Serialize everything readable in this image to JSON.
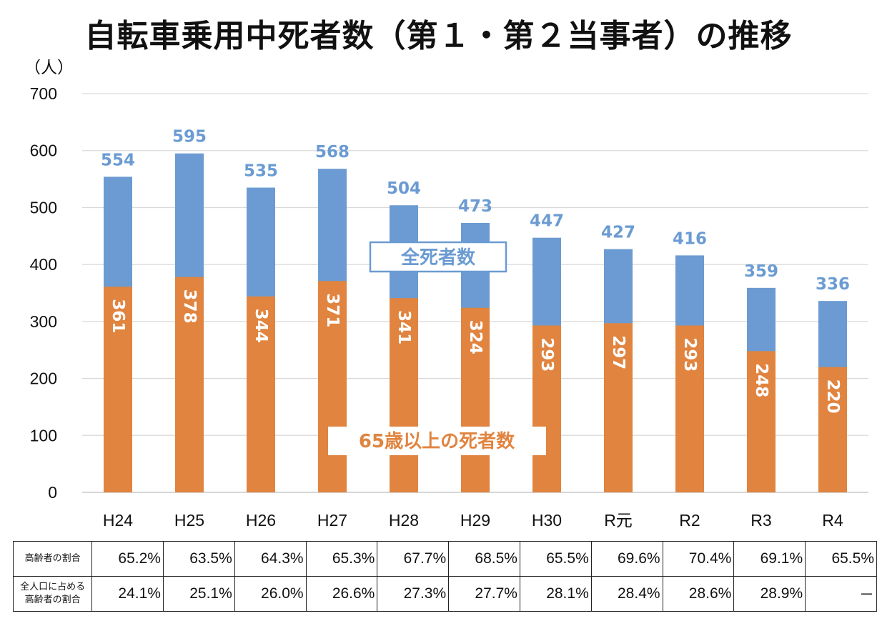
{
  "title": "自転車乗用中死者数（第１・第２当事者）の推移",
  "chart_data": {
    "type": "bar",
    "stacked_overlay": true,
    "ylabel": "（人）",
    "ylim": [
      0,
      700
    ],
    "yticks": [
      0,
      100,
      200,
      300,
      400,
      500,
      600,
      700
    ],
    "grid": true,
    "categories": [
      "H24",
      "H25",
      "H26",
      "H27",
      "H28",
      "H29",
      "H30",
      "R元",
      "R2",
      "R3",
      "R4"
    ],
    "series": [
      {
        "name": "全死者数",
        "color": "#6b9bd2",
        "values": [
          554,
          595,
          535,
          568,
          504,
          473,
          447,
          427,
          416,
          359,
          336
        ]
      },
      {
        "name": "65歳以上の死者数",
        "color": "#e0843f",
        "values": [
          361,
          378,
          344,
          371,
          341,
          324,
          293,
          297,
          293,
          248,
          220
        ]
      }
    ]
  },
  "table": {
    "rows": [
      {
        "label": [
          "高齢者の割合"
        ],
        "values": [
          "65.2%",
          "63.5%",
          "64.3%",
          "65.3%",
          "67.7%",
          "68.5%",
          "65.5%",
          "69.6%",
          "70.4%",
          "69.1%",
          "65.5%"
        ]
      },
      {
        "label": [
          "全人口に占める",
          "高齢者の割合"
        ],
        "values": [
          "24.1%",
          "25.1%",
          "26.0%",
          "26.6%",
          "27.3%",
          "27.7%",
          "28.1%",
          "28.4%",
          "28.6%",
          "28.9%",
          "－"
        ]
      }
    ]
  }
}
